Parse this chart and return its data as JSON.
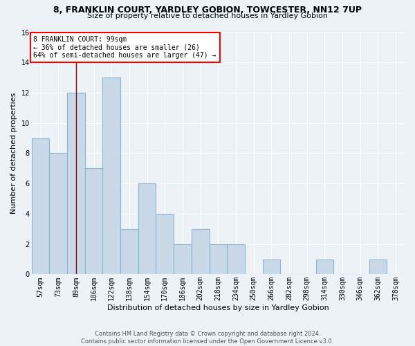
{
  "title1": "8, FRANKLIN COURT, YARDLEY GOBION, TOWCESTER, NN12 7UP",
  "title2": "Size of property relative to detached houses in Yardley Gobion",
  "xlabel": "Distribution of detached houses by size in Yardley Gobion",
  "ylabel": "Number of detached properties",
  "bar_labels": [
    "57sqm",
    "73sqm",
    "89sqm",
    "106sqm",
    "122sqm",
    "138sqm",
    "154sqm",
    "170sqm",
    "186sqm",
    "202sqm",
    "218sqm",
    "234sqm",
    "250sqm",
    "266sqm",
    "282sqm",
    "298sqm",
    "314sqm",
    "330sqm",
    "346sqm",
    "362sqm",
    "378sqm"
  ],
  "bar_values": [
    9,
    8,
    12,
    7,
    13,
    3,
    6,
    4,
    2,
    3,
    2,
    2,
    0,
    1,
    0,
    0,
    1,
    0,
    0,
    1,
    0
  ],
  "bar_color": "#c9d9e8",
  "bar_edge_color": "#8ab4d0",
  "vline_x_index": 2,
  "vline_color": "#8b0000",
  "annotation_text": "8 FRANKLIN COURT: 99sqm\n← 36% of detached houses are smaller (26)\n64% of semi-detached houses are larger (47) →",
  "annotation_box_color": "white",
  "annotation_box_edge_color": "red",
  "ylim": [
    0,
    16
  ],
  "yticks": [
    0,
    2,
    4,
    6,
    8,
    10,
    12,
    14,
    16
  ],
  "footer1": "Contains HM Land Registry data © Crown copyright and database right 2024.",
  "footer2": "Contains public sector information licensed under the Open Government Licence v3.0.",
  "bg_color": "#edf2f7",
  "grid_color": "white",
  "title1_fontsize": 9,
  "title2_fontsize": 8,
  "ylabel_fontsize": 8,
  "xlabel_fontsize": 8,
  "tick_fontsize": 7,
  "footer_fontsize": 6,
  "annotation_fontsize": 7
}
